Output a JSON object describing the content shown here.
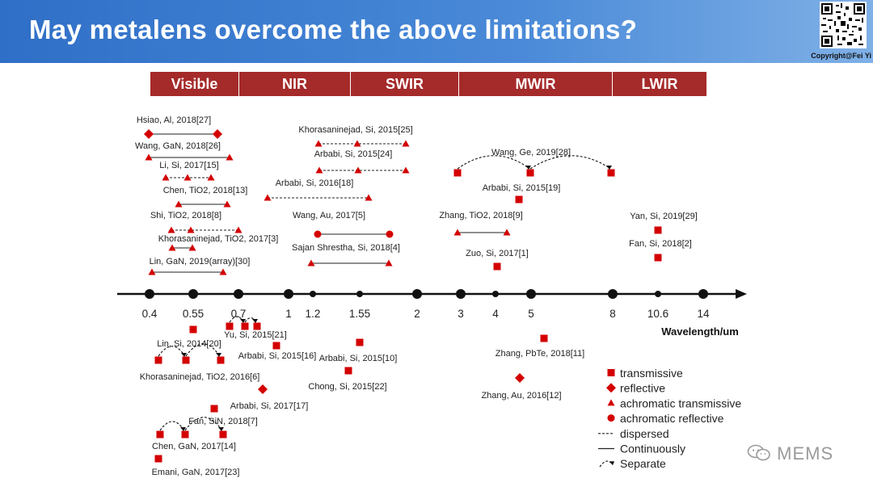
{
  "title": "May metalens overcome the above limitations?",
  "copyright": "Copyright@Fei  Yi",
  "watermark": "MEMS",
  "colors": {
    "mark": "#d40000",
    "band": "#a52a2a",
    "title_bg": "#3a7bd5"
  },
  "bands": [
    {
      "label": "Visible",
      "start": 0.4,
      "end": 0.8
    },
    {
      "label": "NIR",
      "start": 0.8,
      "end": 1.4
    },
    {
      "label": "SWIR",
      "start": 1.4,
      "end": 3
    },
    {
      "label": "MWIR",
      "start": 3,
      "end": 8
    },
    {
      "label": "LWIR",
      "start": 8,
      "end": 15
    }
  ],
  "axis": {
    "title": "Wavelength/um",
    "ticks": [
      {
        "value": 0.4,
        "label": "0.4",
        "dot": "big"
      },
      {
        "value": 0.55,
        "label": "0.55",
        "dot": "big"
      },
      {
        "value": 0.7,
        "label": "0.7",
        "dot": "big"
      },
      {
        "value": 1,
        "label": "1",
        "dot": "big"
      },
      {
        "value": 1.2,
        "label": "1.2",
        "dot": "small"
      },
      {
        "value": 1.55,
        "label": "1.55",
        "dot": "small"
      },
      {
        "value": 2,
        "label": "2",
        "dot": "big"
      },
      {
        "value": 3,
        "label": "3",
        "dot": "big"
      },
      {
        "value": 4,
        "label": "4",
        "dot": "small"
      },
      {
        "value": 5,
        "label": "5",
        "dot": "big"
      },
      {
        "value": 8,
        "label": "8",
        "dot": "big"
      },
      {
        "value": 10.6,
        "label": "10.6",
        "dot": "small"
      },
      {
        "value": 14,
        "label": "14",
        "dot": "big"
      }
    ]
  },
  "legend": [
    {
      "marker": "square",
      "label": "transmissive"
    },
    {
      "marker": "diamond",
      "label": "reflective"
    },
    {
      "marker": "triangle",
      "label": "achromatic transmissive"
    },
    {
      "marker": "circle",
      "label": "achromatic reflective"
    },
    {
      "line": "dashed",
      "label": "dispersed"
    },
    {
      "line": "solid",
      "label": "Continuously"
    },
    {
      "line": "arc",
      "label": "Separate"
    }
  ],
  "works": [
    {
      "label": "Hsiao, Al, 2018[27]",
      "marker": "diamond",
      "link": "solid",
      "wavelengths": [
        0.4,
        0.67
      ]
    },
    {
      "label": "Wang, GaN, 2018[26]",
      "marker": "triangle",
      "link": "solid",
      "wavelengths": [
        0.4,
        0.67
      ]
    },
    {
      "label": "Li, Si, 2017[15]",
      "marker": "triangle",
      "link": "dashed",
      "wavelengths": [
        0.47,
        0.53,
        0.62
      ]
    },
    {
      "label": "Chen, TiO2, 2018[13]",
      "marker": "triangle",
      "link": "solid",
      "wavelengths": [
        0.47,
        0.67
      ]
    },
    {
      "label": "Shi, TiO2, 2018[8]",
      "marker": "triangle",
      "link": "dashed",
      "wavelengths": [
        0.45,
        0.55,
        0.7
      ]
    },
    {
      "label": "Khorasaninejad, TiO2, 2017[3]",
      "marker": "triangle",
      "link": "solid",
      "wavelengths": [
        0.48,
        0.55
      ]
    },
    {
      "label": "Lin, GaN, 2019(array)[30]",
      "marker": "triangle",
      "link": "solid",
      "wavelengths": [
        0.4,
        0.66
      ]
    },
    {
      "label": "Khorasaninejad, Si, 2015[25]",
      "marker": "triangle",
      "link": "dashed",
      "wavelengths": [
        1.3,
        1.6,
        2.0
      ]
    },
    {
      "label": "Arbabi, Si, 2015[24]",
      "marker": "triangle",
      "link": "dashed",
      "wavelengths": [
        1.3,
        1.6,
        2.0
      ]
    },
    {
      "label": "Arbabi, Si, 2016[18]",
      "marker": "triangle",
      "link": "dashed",
      "wavelengths": [
        1.0,
        1.6
      ]
    },
    {
      "label": "Wang, Au, 2017[5]",
      "marker": "circle",
      "link": "solid",
      "wavelengths": [
        1.2,
        1.65
      ]
    },
    {
      "label": "Sajan Shrestha, Si, 2018[4]",
      "marker": "triangle",
      "link": "solid",
      "wavelengths": [
        1.2,
        1.65
      ]
    },
    {
      "label": "Wang, Ge, 2019[28]",
      "marker": "square",
      "link": "arc",
      "wavelengths": [
        3,
        5,
        8
      ]
    },
    {
      "label": "Arbabi, Si, 2015[19]",
      "marker": "square",
      "link": "none",
      "wavelengths": [
        4.6
      ]
    },
    {
      "label": "Zhang, TiO2, 2018[9]",
      "marker": "triangle",
      "link": "solid",
      "wavelengths": [
        3,
        4.2
      ]
    },
    {
      "label": "Zuo, Si, 2017[1]",
      "marker": "square",
      "link": "none",
      "wavelengths": [
        4
      ]
    },
    {
      "label": "Yan, Si, 2019[29]",
      "marker": "square",
      "link": "none",
      "wavelengths": [
        10.6
      ]
    },
    {
      "label": "Fan, Si, 2018[2]",
      "marker": "square",
      "link": "none",
      "wavelengths": [
        10.6
      ]
    },
    {
      "label": "Yu, Si, 2015[21]",
      "marker": "square",
      "link": "arc",
      "wavelengths": [
        0.66,
        0.73,
        0.8
      ]
    },
    {
      "label": "Lin, Si, 2014[20]",
      "marker": "square",
      "link": "none",
      "wavelengths": [
        0.55
      ]
    },
    {
      "label": "Arbabi, Si, 2015[16]",
      "marker": "square",
      "link": "none",
      "wavelengths": [
        0.9
      ]
    },
    {
      "label": "Khorasaninejad, TiO2, 2016[6]",
      "marker": "square",
      "link": "arc",
      "wavelengths": [
        0.45,
        0.53,
        0.66
      ]
    },
    {
      "label": "Arbabi, Si, 2015[10]",
      "marker": "square",
      "link": "none",
      "wavelengths": [
        1.55
      ]
    },
    {
      "label": "Chong, Si, 2015[22]",
      "marker": "square",
      "link": "none",
      "wavelengths": [
        1.5
      ]
    },
    {
      "label": "Zhang, PbTe, 2018[11]",
      "marker": "square",
      "link": "none",
      "wavelengths": [
        5.2
      ]
    },
    {
      "label": "Zhang, Au, 2016[12]",
      "marker": "diamond",
      "link": "none",
      "wavelengths": [
        4.5
      ]
    },
    {
      "label": "Arbabi, Si, 2017[17]",
      "marker": "diamond",
      "link": "none",
      "wavelengths": [
        0.95
      ]
    },
    {
      "label": "Fan, SiN, 2018[7]",
      "marker": "square",
      "link": "none",
      "wavelengths": [
        0.6
      ]
    },
    {
      "label": "Chen, GaN, 2017[14]",
      "marker": "square",
      "link": "arc",
      "wavelengths": [
        0.43,
        0.5,
        0.6
      ]
    },
    {
      "label": "Emani, GaN, 2017[23]",
      "marker": "square",
      "link": "none",
      "wavelengths": [
        0.43
      ]
    }
  ]
}
